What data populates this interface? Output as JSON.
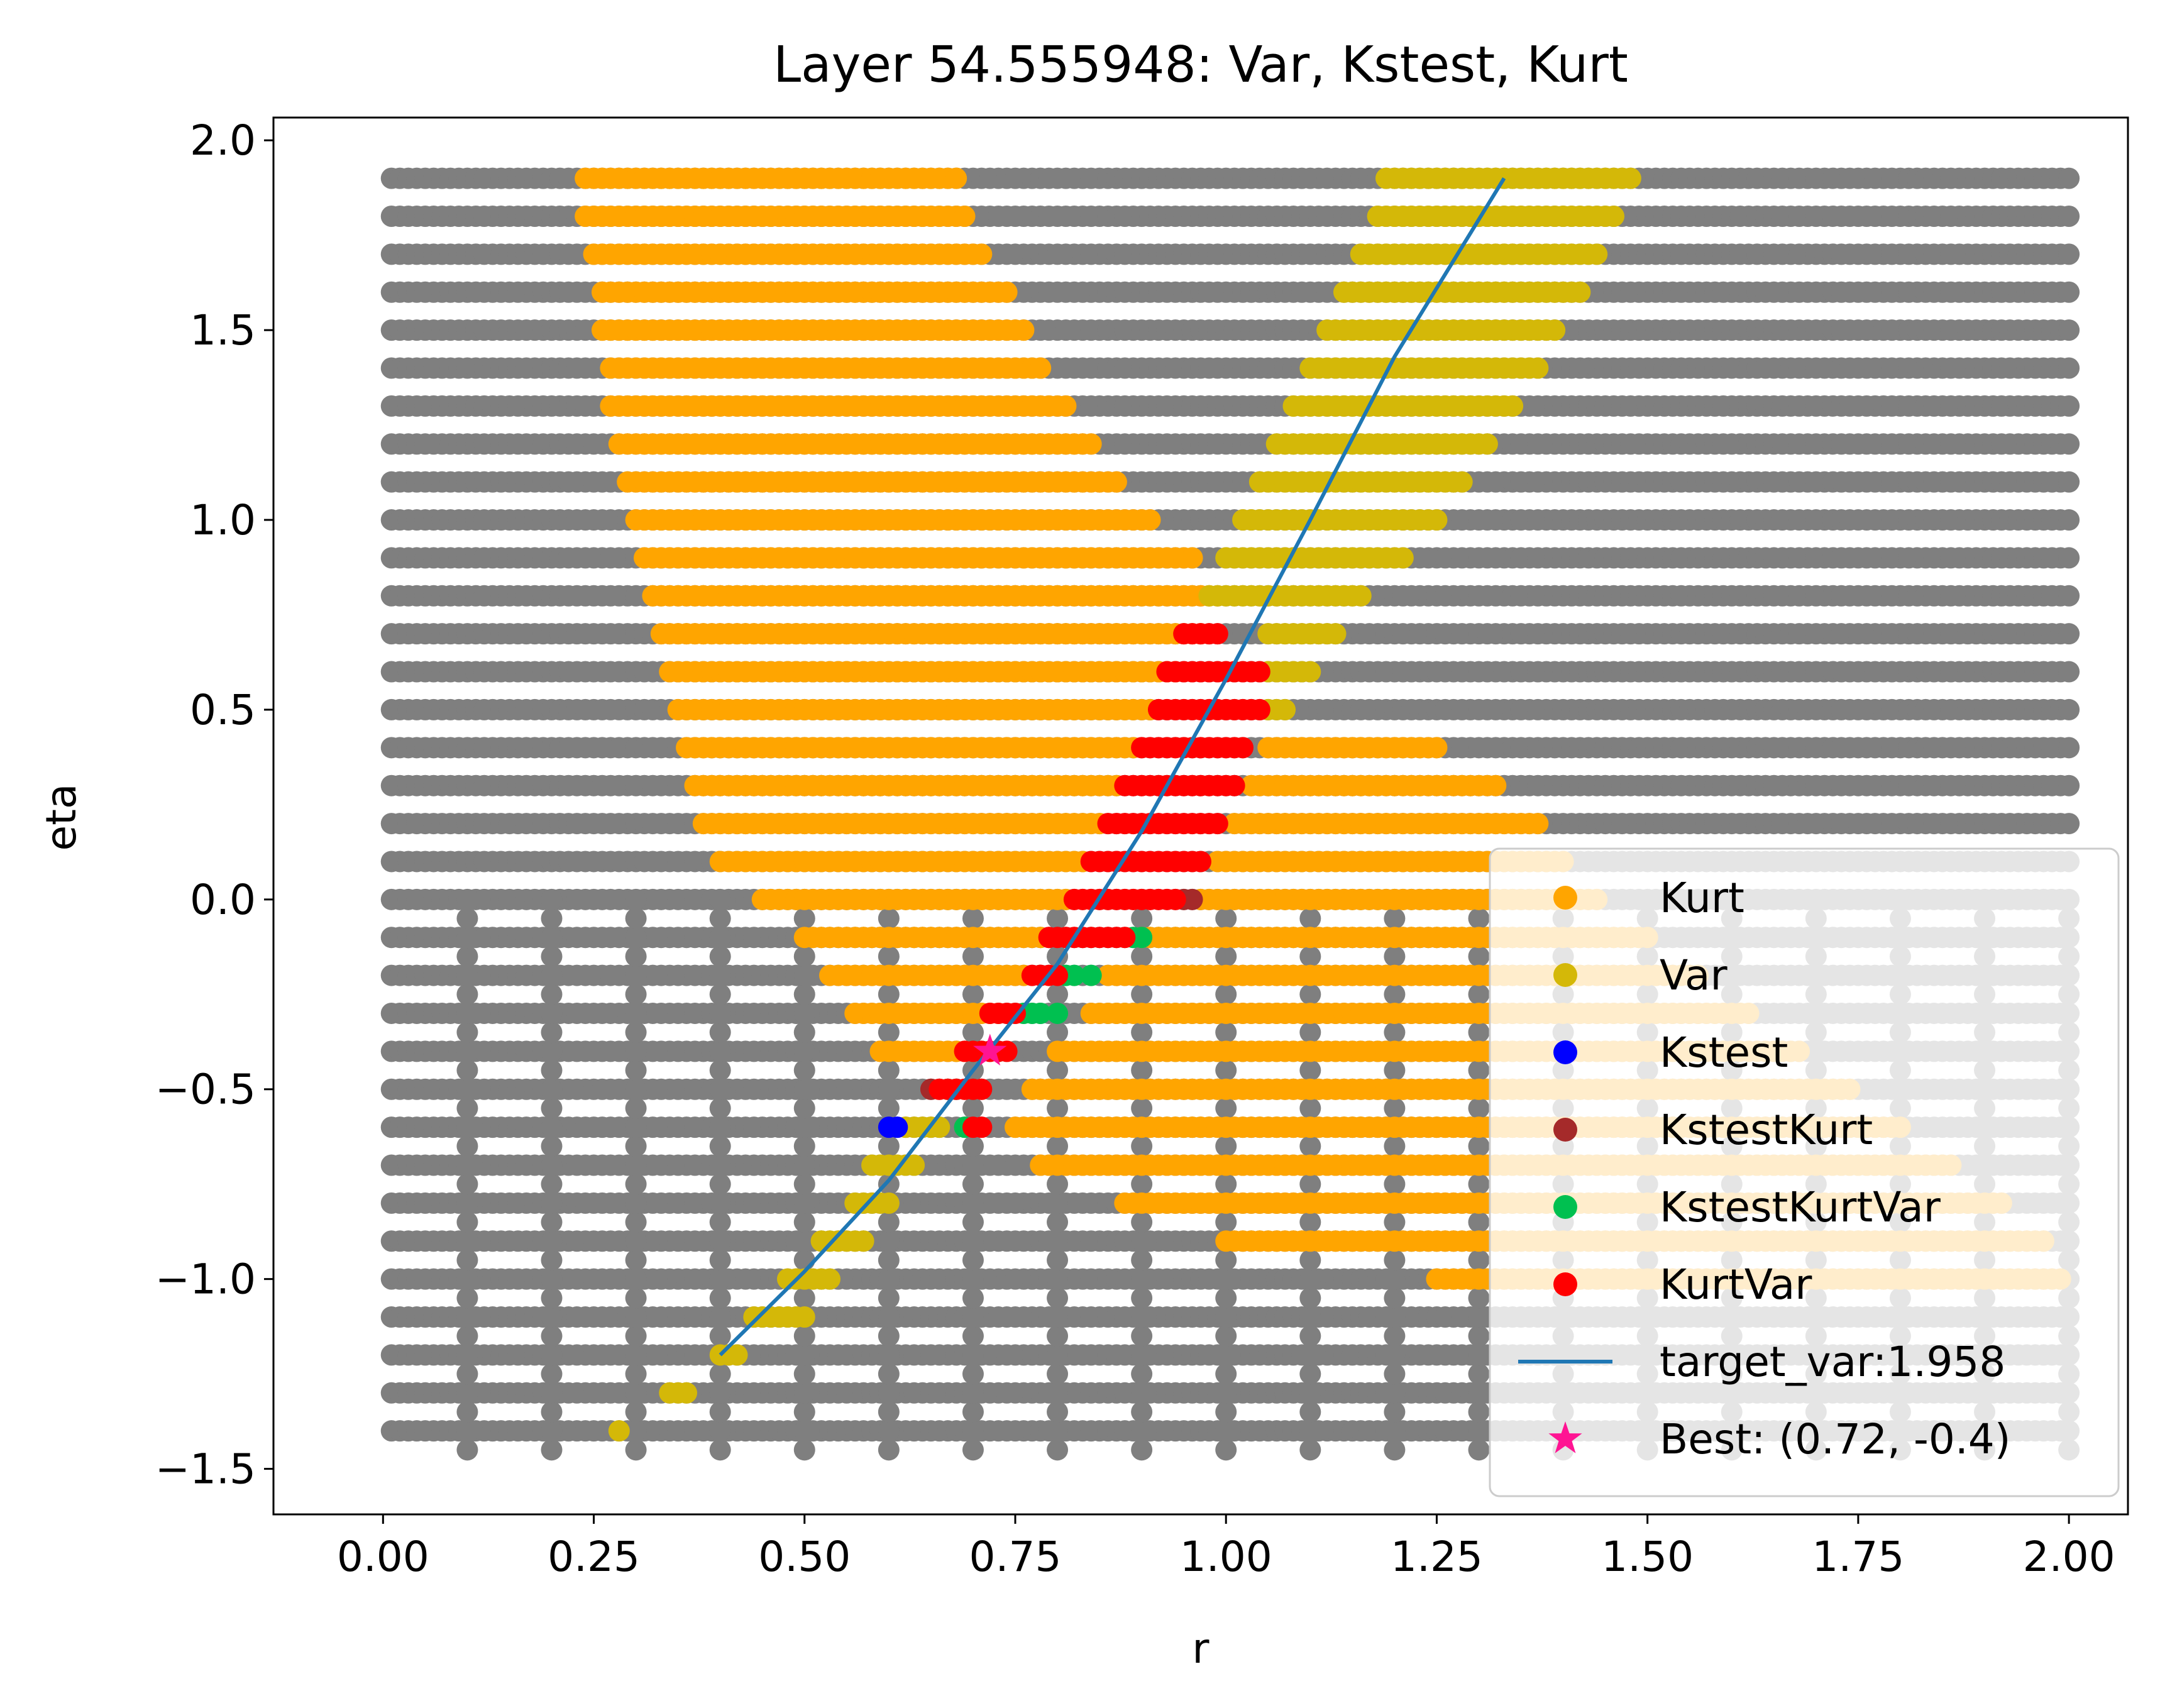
{
  "chart_data": {
    "type": "scatter",
    "title": "Layer 54.555948: Var, Kstest, Kurt",
    "xlabel": "r",
    "ylabel": "eta",
    "xlim": [
      -0.13,
      2.07
    ],
    "ylim": [
      -1.62,
      2.06
    ],
    "xticks": [
      0.0,
      0.25,
      0.5,
      0.75,
      1.0,
      1.25,
      1.5,
      1.75,
      2.0
    ],
    "xtick_labels": [
      "0.00",
      "0.25",
      "0.50",
      "0.75",
      "1.00",
      "1.25",
      "1.50",
      "1.75",
      "2.00"
    ],
    "yticks": [
      -1.5,
      -1.0,
      -0.5,
      0.0,
      0.5,
      1.0,
      1.5,
      2.0
    ],
    "ytick_labels": [
      "−1.5",
      "−1.0",
      "−0.5",
      "0.0",
      "0.5",
      "1.0",
      "1.5",
      "2.0"
    ],
    "grid": false,
    "legend_position": "lower-right",
    "background_color": "#7f7f7f",
    "grid_points": {
      "r_values_positive_eta": "0.01 to 2.00 step 0.01",
      "eta_values": "-1.4 to 1.9 step 0.1"
    },
    "series": [
      {
        "name": "Kurt",
        "color": "#ffa500",
        "marker": "circle",
        "regions": [
          {
            "eta": 1.9,
            "r": [
              0.24,
              0.68
            ]
          },
          {
            "eta": 1.8,
            "r": [
              0.24,
              0.69
            ]
          },
          {
            "eta": 1.7,
            "r": [
              0.25,
              0.71
            ]
          },
          {
            "eta": 1.6,
            "r": [
              0.26,
              0.74
            ]
          },
          {
            "eta": 1.5,
            "r": [
              0.26,
              0.76
            ]
          },
          {
            "eta": 1.4,
            "r": [
              0.27,
              0.78
            ]
          },
          {
            "eta": 1.3,
            "r": [
              0.27,
              0.81
            ]
          },
          {
            "eta": 1.2,
            "r": [
              0.28,
              0.84
            ]
          },
          {
            "eta": 1.1,
            "r": [
              0.29,
              0.87
            ]
          },
          {
            "eta": 1.0,
            "r": [
              0.3,
              0.91
            ]
          },
          {
            "eta": 0.9,
            "r": [
              0.31,
              0.96
            ]
          },
          {
            "eta": 0.8,
            "r": [
              0.32,
              0.99
            ]
          },
          {
            "eta": 0.7,
            "r": [
              0.33,
              0.97
            ]
          },
          {
            "eta": 0.6,
            "r": [
              0.34,
              0.94
            ]
          },
          {
            "eta": 0.5,
            "r": [
              0.35,
              0.91
            ]
          },
          {
            "eta": 0.4,
            "r": [
              0.36,
              0.89
            ]
          },
          {
            "eta": 0.3,
            "r": [
              0.37,
              0.87
            ]
          },
          {
            "eta": 0.2,
            "r": [
              0.38,
              0.85
            ]
          },
          {
            "eta": 0.1,
            "r": [
              0.4,
              0.83
            ]
          },
          {
            "eta": 0.0,
            "r": [
              0.45,
              0.81
            ]
          },
          {
            "eta": -0.1,
            "r": [
              0.5,
              0.78
            ]
          },
          {
            "eta": -0.2,
            "r": [
              0.53,
              0.76
            ]
          },
          {
            "eta": -0.3,
            "r": [
              0.56,
              0.73
            ]
          },
          {
            "eta": -0.4,
            "r": [
              0.59,
              0.7
            ]
          },
          {
            "eta": 0.4,
            "r": [
              1.05,
              1.25
            ]
          },
          {
            "eta": 0.3,
            "r": [
              1.03,
              1.32
            ]
          },
          {
            "eta": 0.2,
            "r": [
              1.01,
              1.37
            ]
          },
          {
            "eta": 0.1,
            "r": [
              0.99,
              1.4
            ]
          },
          {
            "eta": 0.0,
            "r": [
              0.97,
              1.44
            ]
          },
          {
            "eta": -0.1,
            "r": [
              0.9,
              1.5
            ]
          },
          {
            "eta": -0.2,
            "r": [
              0.86,
              1.56
            ]
          },
          {
            "eta": -0.3,
            "r": [
              0.84,
              1.62
            ]
          },
          {
            "eta": -0.4,
            "r": [
              0.8,
              1.68
            ]
          },
          {
            "eta": -0.5,
            "r": [
              0.77,
              1.74
            ]
          },
          {
            "eta": -0.6,
            "r": [
              0.75,
              1.8
            ]
          },
          {
            "eta": -0.7,
            "r": [
              0.78,
              1.86
            ]
          },
          {
            "eta": -0.8,
            "r": [
              0.88,
              1.92
            ]
          },
          {
            "eta": -0.9,
            "r": [
              1.0,
              1.97
            ]
          },
          {
            "eta": -1.0,
            "r": [
              1.25,
              1.99
            ]
          }
        ]
      },
      {
        "name": "Var",
        "color": "#d4b808",
        "marker": "circle",
        "regions": [
          {
            "eta": 1.9,
            "r": [
              1.19,
              1.48
            ]
          },
          {
            "eta": 1.8,
            "r": [
              1.18,
              1.46
            ]
          },
          {
            "eta": 1.7,
            "r": [
              1.16,
              1.44
            ]
          },
          {
            "eta": 1.6,
            "r": [
              1.14,
              1.42
            ]
          },
          {
            "eta": 1.5,
            "r": [
              1.12,
              1.39
            ]
          },
          {
            "eta": 1.4,
            "r": [
              1.1,
              1.37
            ]
          },
          {
            "eta": 1.3,
            "r": [
              1.08,
              1.34
            ]
          },
          {
            "eta": 1.2,
            "r": [
              1.06,
              1.31
            ]
          },
          {
            "eta": 1.1,
            "r": [
              1.04,
              1.28
            ]
          },
          {
            "eta": 1.0,
            "r": [
              1.02,
              1.25
            ]
          },
          {
            "eta": 0.9,
            "r": [
              1.0,
              1.21
            ]
          },
          {
            "eta": 0.8,
            "r": [
              0.98,
              1.16
            ]
          },
          {
            "eta": 0.7,
            "r": [
              1.05,
              1.13
            ]
          },
          {
            "eta": 0.6,
            "r": [
              1.05,
              1.1
            ]
          },
          {
            "eta": 0.5,
            "r": [
              1.05,
              1.07
            ]
          },
          {
            "eta": -0.6,
            "r": [
              0.62,
              0.66
            ]
          },
          {
            "eta": -0.7,
            "r": [
              0.58,
              0.63
            ]
          },
          {
            "eta": -0.8,
            "r": [
              0.56,
              0.6
            ]
          },
          {
            "eta": -0.9,
            "r": [
              0.52,
              0.57
            ]
          },
          {
            "eta": -1.0,
            "r": [
              0.48,
              0.53
            ]
          },
          {
            "eta": -1.1,
            "r": [
              0.44,
              0.5
            ]
          },
          {
            "eta": -1.2,
            "r": [
              0.4,
              0.42
            ]
          },
          {
            "eta": -1.3,
            "r": [
              0.34,
              0.36
            ]
          },
          {
            "eta": -1.4,
            "r": [
              0.28,
              0.28
            ]
          }
        ]
      },
      {
        "name": "Kstest",
        "color": "#0000ff",
        "marker": "circle",
        "points": [
          [
            0.6,
            -0.6
          ],
          [
            0.61,
            -0.6
          ]
        ]
      },
      {
        "name": "KstestKurt",
        "color": "#a52a2a",
        "marker": "circle",
        "points": [
          [
            0.65,
            -0.5
          ],
          [
            0.95,
            0.0
          ],
          [
            0.96,
            0.0
          ],
          [
            0.78,
            -0.2
          ]
        ]
      },
      {
        "name": "KstestKurtVar",
        "color": "#00c050",
        "marker": "circle",
        "points": [
          [
            0.7,
            -0.4
          ],
          [
            0.71,
            -0.4
          ],
          [
            0.73,
            -0.4
          ],
          [
            0.67,
            -0.5
          ],
          [
            0.68,
            -0.5
          ],
          [
            0.7,
            -0.5
          ],
          [
            0.76,
            -0.3
          ],
          [
            0.77,
            -0.3
          ],
          [
            0.78,
            -0.3
          ],
          [
            0.8,
            -0.3
          ],
          [
            0.81,
            -0.2
          ],
          [
            0.82,
            -0.2
          ],
          [
            0.84,
            -0.2
          ],
          [
            0.89,
            -0.1
          ],
          [
            0.9,
            -0.1
          ],
          [
            0.69,
            -0.6
          ]
        ]
      },
      {
        "name": "KurtVar",
        "color": "#ff0000",
        "marker": "circle",
        "regions": [
          {
            "eta": 0.7,
            "r": [
              0.95,
              0.99
            ]
          },
          {
            "eta": 0.6,
            "r": [
              0.93,
              1.04
            ]
          },
          {
            "eta": 0.5,
            "r": [
              0.92,
              1.04
            ]
          },
          {
            "eta": 0.4,
            "r": [
              0.9,
              1.02
            ]
          },
          {
            "eta": 0.3,
            "r": [
              0.88,
              1.01
            ]
          },
          {
            "eta": 0.2,
            "r": [
              0.86,
              0.99
            ]
          },
          {
            "eta": 0.1,
            "r": [
              0.84,
              0.97
            ]
          },
          {
            "eta": 0.0,
            "r": [
              0.82,
              0.94
            ]
          },
          {
            "eta": -0.1,
            "r": [
              0.79,
              0.88
            ]
          },
          {
            "eta": -0.2,
            "r": [
              0.77,
              0.8
            ]
          },
          {
            "eta": -0.3,
            "r": [
              0.72,
              0.75
            ]
          },
          {
            "eta": -0.4,
            "r": [
              0.69,
              0.74
            ]
          },
          {
            "eta": -0.5,
            "r": [
              0.66,
              0.71
            ]
          },
          {
            "eta": -0.6,
            "r": [
              0.7,
              0.71
            ]
          }
        ]
      },
      {
        "name": "target_var:1.958",
        "color": "#1f77b4",
        "marker": "line",
        "x": [
          0.4,
          0.5,
          0.6,
          0.7,
          0.8,
          0.9,
          1.0,
          1.1,
          1.2,
          1.33
        ],
        "y": [
          -1.2,
          -0.98,
          -0.74,
          -0.45,
          -0.17,
          0.18,
          0.58,
          1.0,
          1.43,
          1.9
        ]
      },
      {
        "name": "Best: (0.72, -0.4)",
        "color": "#ff1493",
        "marker": "star",
        "points": [
          [
            0.72,
            -0.4
          ]
        ]
      }
    ]
  }
}
